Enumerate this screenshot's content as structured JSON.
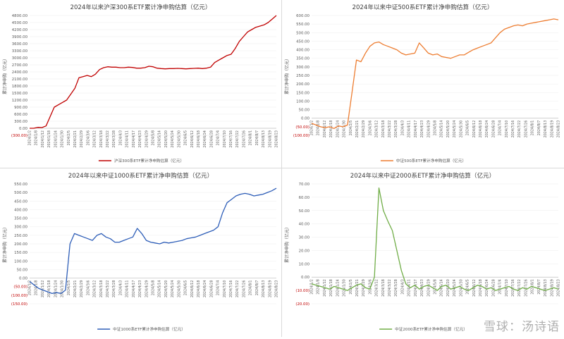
{
  "watermark": "雪球：汤诗语",
  "y_axis_label": "累计净申购（亿元）",
  "colors": {
    "neg": "#c00000",
    "axis": "#d9d9d9",
    "text": "#595959",
    "grid": "#ececec"
  },
  "chart_data": [
    {
      "type": "line",
      "title": "2024年以来沪深300系ETF累计净申购估算（亿元）",
      "legend": "沪深300系ETF累计净申购估算",
      "color": "#c00000",
      "ylim": [
        -300,
        4800
      ],
      "yticks": [
        -300,
        0,
        300,
        600,
        900,
        1200,
        1500,
        1800,
        2100,
        2400,
        2700,
        3000,
        3300,
        3600,
        3900,
        4200,
        4500,
        4800
      ],
      "tick_labels": [
        "(300.00)",
        "0.00",
        "300.00",
        "600.00",
        "900.00",
        "1200.00",
        "1500.00",
        "1800.00",
        "2100.00",
        "2400.00",
        "2700.00",
        "3000.00",
        "3300.00",
        "3600.00",
        "3900.00",
        "4200.00",
        "4500.00",
        "4800.00"
      ],
      "x_labels": [
        "2024/1/2",
        "2024/1/8",
        "2024/1/12",
        "2024/1/18",
        "2024/1/24",
        "2024/1/30",
        "2024/2/5",
        "2024/2/21",
        "2024/2/29",
        "2024/3/6",
        "2024/3/12",
        "2024/3/18",
        "2024/3/22",
        "2024/3/28",
        "2024/4/3",
        "2024/4/11",
        "2024/4/17",
        "2024/4/23",
        "2024/4/29",
        "2024/5/8",
        "2024/5/14",
        "2024/5/20",
        "2024/5/24",
        "2024/5/30",
        "2024/6/5",
        "2024/6/12",
        "2024/6/18",
        "2024/6/24",
        "2024/6/28",
        "2024/7/4",
        "2024/7/10",
        "2024/7/16",
        "2024/7/22",
        "2024/7/26",
        "2024/8/1",
        "2024/8/7",
        "2024/8/13",
        "2024/8/19",
        "2024/8/23"
      ],
      "values": [
        0,
        0,
        40,
        30,
        100,
        500,
        900,
        1000,
        1100,
        1200,
        1450,
        1700,
        2150,
        2200,
        2250,
        2200,
        2300,
        2500,
        2580,
        2620,
        2600,
        2600,
        2580,
        2580,
        2600,
        2590,
        2560,
        2560,
        2580,
        2640,
        2620,
        2560,
        2540,
        2530,
        2540,
        2540,
        2550,
        2540,
        2530,
        2540,
        2550,
        2560,
        2540,
        2560,
        2600,
        2800,
        2900,
        3000,
        3100,
        3150,
        3400,
        3700,
        3900,
        4100,
        4200,
        4300,
        4350,
        4400,
        4500,
        4650,
        4800
      ]
    },
    {
      "type": "line",
      "title": "2024年以来中证500系ETF累计净申购估算（亿元）",
      "legend": "中证500系ETF累计净申购估算",
      "color": "#ed7d31",
      "ylim": [
        -100,
        600
      ],
      "yticks": [
        -100,
        -50,
        0,
        50,
        100,
        150,
        200,
        250,
        300,
        350,
        400,
        450,
        500,
        550,
        600
      ],
      "tick_labels": [
        "(100.00)",
        "(50.00)",
        "0.00",
        "50.00",
        "100.00",
        "150.00",
        "200.00",
        "250.00",
        "300.00",
        "350.00",
        "400.00",
        "450.00",
        "500.00",
        "550.00",
        "600.00"
      ],
      "x_labels": [
        "2024/1/2",
        "2024/1/8",
        "2024/1/12",
        "2024/1/18",
        "2024/1/24",
        "2024/1/30",
        "2024/2/5",
        "2024/2/21",
        "2024/2/29",
        "2024/3/6",
        "2024/3/12",
        "2024/3/18",
        "2024/3/22",
        "2024/3/28",
        "2024/4/3",
        "2024/4/11",
        "2024/4/17",
        "2024/4/23",
        "2024/4/29",
        "2024/5/8",
        "2024/5/14",
        "2024/5/20",
        "2024/5/24",
        "2024/5/30",
        "2024/6/5",
        "2024/6/12",
        "2024/6/18",
        "2024/6/24",
        "2024/6/28",
        "2024/7/4",
        "2024/7/10",
        "2024/7/16",
        "2024/7/22",
        "2024/7/26",
        "2024/8/1",
        "2024/8/7",
        "2024/8/13",
        "2024/8/19",
        "2024/8/23"
      ],
      "values": [
        -30,
        -40,
        -50,
        -55,
        -50,
        -60,
        -45,
        -50,
        -40,
        150,
        340,
        330,
        380,
        420,
        440,
        445,
        430,
        420,
        410,
        400,
        380,
        370,
        375,
        380,
        440,
        410,
        380,
        370,
        375,
        360,
        355,
        350,
        360,
        370,
        370,
        385,
        400,
        410,
        420,
        430,
        440,
        470,
        500,
        520,
        530,
        540,
        545,
        540,
        550,
        555,
        560,
        565,
        570,
        575,
        580,
        575
      ]
    },
    {
      "type": "line",
      "title": "2024年以来中证1000系ETF累计净申购估算（亿元）",
      "legend": "中证1000系ETF累计净申购估算",
      "color": "#2e5eb8",
      "ylim": [
        -150,
        550
      ],
      "yticks": [
        -150,
        -100,
        -50,
        0,
        50,
        100,
        150,
        200,
        250,
        300,
        350,
        400,
        450,
        500,
        550
      ],
      "tick_labels": [
        "(150.00)",
        "(100.00)",
        "(50.00)",
        "0.00",
        "50.00",
        "100.00",
        "150.00",
        "200.00",
        "250.00",
        "300.00",
        "350.00",
        "400.00",
        "450.00",
        "500.00",
        "550.00"
      ],
      "x_labels": [
        "2024/1/2",
        "2024/1/8",
        "2024/1/12",
        "2024/1/18",
        "2024/1/24",
        "2024/1/30",
        "2024/2/5",
        "2024/2/21",
        "2024/2/29",
        "2024/3/6",
        "2024/3/12",
        "2024/3/18",
        "2024/3/22",
        "2024/3/28",
        "2024/4/3",
        "2024/4/11",
        "2024/4/17",
        "2024/4/23",
        "2024/4/29",
        "2024/5/8",
        "2024/5/14",
        "2024/5/20",
        "2024/5/24",
        "2024/5/30",
        "2024/6/5",
        "2024/6/12",
        "2024/6/18",
        "2024/6/24",
        "2024/6/28",
        "2024/7/4",
        "2024/7/10",
        "2024/7/16",
        "2024/7/22",
        "2024/7/26",
        "2024/8/1",
        "2024/8/7",
        "2024/8/13",
        "2024/8/19",
        "2024/8/23"
      ],
      "values": [
        -20,
        -40,
        -60,
        -70,
        -80,
        -90,
        -85,
        -90,
        -70,
        200,
        260,
        250,
        240,
        230,
        220,
        250,
        260,
        240,
        230,
        210,
        210,
        220,
        230,
        240,
        290,
        260,
        220,
        210,
        205,
        200,
        210,
        205,
        210,
        215,
        220,
        230,
        235,
        240,
        250,
        260,
        270,
        280,
        300,
        380,
        440,
        460,
        480,
        490,
        495,
        490,
        480,
        485,
        490,
        500,
        510,
        525
      ]
    },
    {
      "type": "line",
      "title": "2024年以来中证2000系ETF累计净申购估算（亿元）",
      "legend": "中证2000系ETF累计净申购估算",
      "color": "#70ad47",
      "ylim": [
        -20,
        70
      ],
      "yticks": [
        -20,
        -10,
        0,
        10,
        20,
        30,
        40,
        50,
        60,
        70
      ],
      "tick_labels": [
        "(20.00)",
        "(10.00)",
        "0.00",
        "10.00",
        "20.00",
        "30.00",
        "40.00",
        "50.00",
        "60.00",
        "70.00"
      ],
      "x_labels": [
        "2024/1/2",
        "2024/1/8",
        "2024/1/12",
        "2024/1/18",
        "2024/1/24",
        "2024/1/30",
        "2024/2/5",
        "2024/2/21",
        "2024/2/29",
        "2024/3/6",
        "2024/3/12",
        "2024/3/18",
        "2024/3/22",
        "2024/3/28",
        "2024/4/3",
        "2024/4/11",
        "2024/4/17",
        "2024/4/23",
        "2024/4/29",
        "2024/5/8",
        "2024/5/14",
        "2024/5/20",
        "2024/5/24",
        "2024/5/30",
        "2024/6/5",
        "2024/6/12",
        "2024/6/18",
        "2024/6/24",
        "2024/6/28",
        "2024/7/4",
        "2024/7/10",
        "2024/7/16",
        "2024/7/22",
        "2024/7/26",
        "2024/8/1",
        "2024/8/7",
        "2024/8/13",
        "2024/8/19",
        "2024/8/23"
      ],
      "values": [
        -5,
        -6,
        -7,
        -8,
        -9,
        -7,
        -8,
        -9,
        -10,
        -8,
        -6,
        -5,
        -8,
        -9,
        0,
        67,
        50,
        42,
        35,
        20,
        5,
        -5,
        -8,
        -6,
        -9,
        -7,
        -6,
        -8,
        -10,
        -7,
        -6,
        -9,
        -8,
        -7,
        -9,
        -10,
        -8,
        -6,
        -7,
        -9,
        -8,
        -10,
        -9,
        -8,
        -7,
        -9,
        -10,
        -8,
        -9,
        -7,
        -8,
        -9,
        -10,
        -9,
        -8,
        -9
      ]
    }
  ]
}
